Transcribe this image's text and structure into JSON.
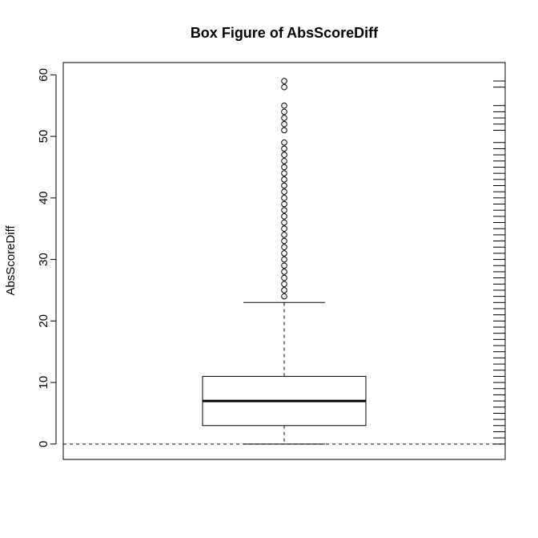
{
  "chart_data": {
    "type": "box",
    "title": "Box Figure of AbsScoreDiff",
    "xlabel": "",
    "ylabel": "AbsScoreDiff",
    "ylim": [
      -2.5,
      62
    ],
    "y_ticks": [
      0,
      10,
      20,
      30,
      40,
      50,
      60
    ],
    "y_tick_labels": [
      "0",
      "10",
      "20",
      "30",
      "40",
      "50",
      "60"
    ],
    "box": {
      "whisker_low": 0,
      "q1": 3,
      "median": 7,
      "q3": 11,
      "whisker_high": 23
    },
    "outliers": [
      24,
      25,
      26,
      27,
      28,
      29,
      30,
      31,
      32,
      33,
      34,
      35,
      36,
      37,
      38,
      39,
      40,
      41,
      42,
      43,
      44,
      45,
      46,
      47,
      48,
      49,
      51,
      52,
      53,
      54,
      55,
      58,
      59
    ],
    "rug_values": [
      0,
      1,
      2,
      3,
      4,
      5,
      6,
      7,
      8,
      9,
      10,
      11,
      12,
      13,
      14,
      15,
      16,
      17,
      18,
      19,
      20,
      21,
      22,
      23,
      24,
      25,
      26,
      27,
      28,
      29,
      30,
      31,
      32,
      33,
      34,
      35,
      36,
      37,
      38,
      39,
      40,
      41,
      42,
      43,
      44,
      45,
      46,
      47,
      48,
      49,
      51,
      52,
      53,
      54,
      55,
      58,
      59
    ],
    "reference_line": 0
  }
}
